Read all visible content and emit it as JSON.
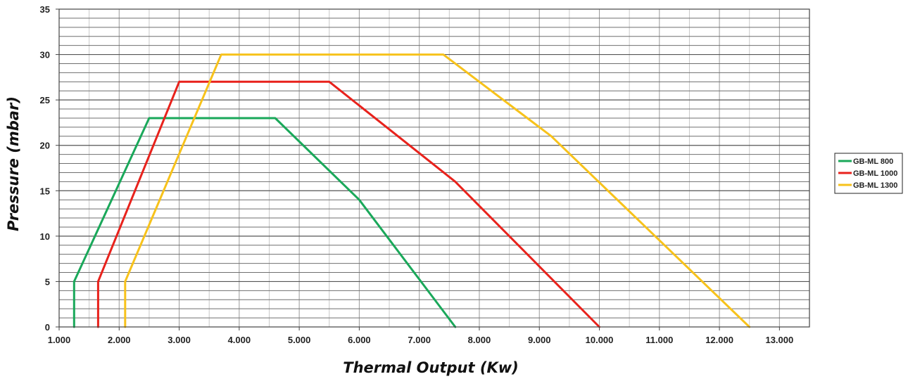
{
  "chart_data": {
    "type": "line",
    "xlabel": "Thermal Output (Kw)",
    "ylabel": "Pressure (mbar)",
    "xlim": [
      1000,
      13500
    ],
    "ylim": [
      0,
      35
    ],
    "x_ticks": [
      1000,
      2000,
      3000,
      4000,
      5000,
      6000,
      7000,
      8000,
      9000,
      10000,
      11000,
      12000,
      13000
    ],
    "x_tick_labels": [
      "1.000",
      "2.000",
      "3.000",
      "4.000",
      "5.000",
      "6.000",
      "7.000",
      "8.000",
      "9.000",
      "10.000",
      "11.000",
      "12.000",
      "13.000"
    ],
    "y_ticks": [
      0,
      5,
      10,
      15,
      20,
      25,
      30,
      35
    ],
    "y_tick_labels": [
      "0",
      "5",
      "10",
      "15",
      "20",
      "25",
      "30",
      "35"
    ],
    "grid": true,
    "legend_position": "right",
    "series": [
      {
        "name": "GB-ML 800",
        "color": "#1aa85a",
        "points": [
          [
            1250,
            0
          ],
          [
            1250,
            5
          ],
          [
            2500,
            23
          ],
          [
            4600,
            23
          ],
          [
            6000,
            14
          ],
          [
            7600,
            0
          ]
        ]
      },
      {
        "name": "GB-ML 1000",
        "color": "#e8221c",
        "points": [
          [
            1650,
            0
          ],
          [
            1650,
            5
          ],
          [
            3000,
            27
          ],
          [
            5500,
            27
          ],
          [
            7600,
            16
          ],
          [
            10000,
            0
          ]
        ]
      },
      {
        "name": "GB-ML 1300",
        "color": "#f7c21b",
        "points": [
          [
            2100,
            0
          ],
          [
            2100,
            5
          ],
          [
            3700,
            30
          ],
          [
            7400,
            30
          ],
          [
            9200,
            21
          ],
          [
            12500,
            0
          ]
        ]
      }
    ]
  }
}
